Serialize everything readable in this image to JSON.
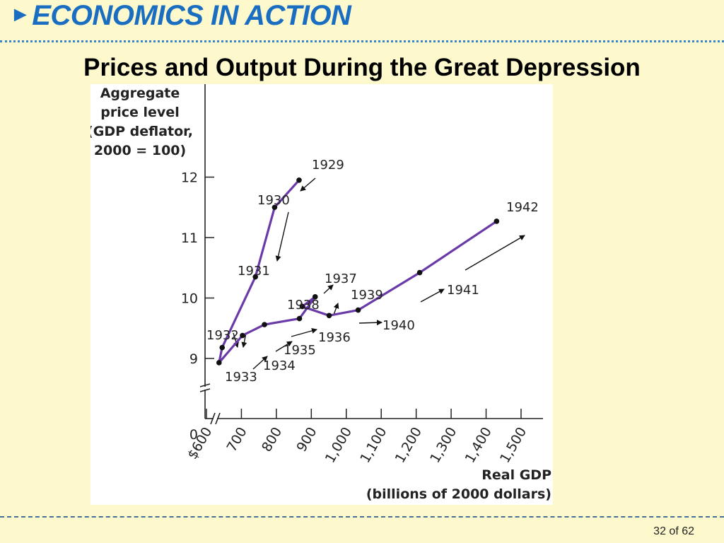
{
  "header": {
    "arrow": "►",
    "title": "ECONOMICS IN ACTION"
  },
  "slide_title": "Prices and Output During the Great Depression",
  "footer": {
    "page": "32 of 62"
  },
  "colors": {
    "background": "#fdf9cd",
    "header": "#1a6ec2",
    "line": "#6a3aa8",
    "point": "#111111"
  },
  "chart_data": {
    "type": "line",
    "ylabel_lines": [
      "Aggregate",
      "price level",
      "(GDP deflator,",
      "2000 = 100)"
    ],
    "xlabel_lines": [
      "Real GDP",
      "(billions of 2000 dollars)"
    ],
    "x_ticks": [
      {
        "value": 600,
        "label": "$600"
      },
      {
        "value": 700,
        "label": "700"
      },
      {
        "value": 800,
        "label": "800"
      },
      {
        "value": 900,
        "label": "900"
      },
      {
        "value": 1000,
        "label": "1,000"
      },
      {
        "value": 1100,
        "label": "1,100"
      },
      {
        "value": 1200,
        "label": "1,200"
      },
      {
        "value": 1300,
        "label": "1,300"
      },
      {
        "value": 1400,
        "label": "1,400"
      },
      {
        "value": 1500,
        "label": "1,500"
      }
    ],
    "y_ticks": [
      {
        "value": 9,
        "label": "9"
      },
      {
        "value": 10,
        "label": "10"
      },
      {
        "value": 11,
        "label": "11"
      },
      {
        "value": 12,
        "label": "12"
      }
    ],
    "y_origin_label": "0",
    "xlim": [
      600,
      1500
    ],
    "ylim": [
      8.5,
      12.5
    ],
    "axis_break": true,
    "grid": false,
    "series": [
      {
        "points": [
          {
            "year": "1929",
            "x": 865,
            "y": 11.95
          },
          {
            "year": "1930",
            "x": 795,
            "y": 11.5
          },
          {
            "year": "1931",
            "x": 740,
            "y": 10.35
          },
          {
            "year": "1932",
            "x": 645,
            "y": 9.18
          },
          {
            "year": "1933",
            "x": 636,
            "y": 8.93
          },
          {
            "year": "1934",
            "x": 703,
            "y": 9.38
          },
          {
            "year": "1935",
            "x": 766,
            "y": 9.56
          },
          {
            "year": "1936",
            "x": 866,
            "y": 9.66
          },
          {
            "year": "1937",
            "x": 911,
            "y": 10.02
          },
          {
            "year": "1938",
            "x": 874,
            "y": 9.86
          },
          {
            "year": "1939",
            "x": 951,
            "y": 9.71
          },
          {
            "year": "1940",
            "x": 1034,
            "y": 9.8
          },
          {
            "year": "1941",
            "x": 1210,
            "y": 10.42
          },
          {
            "year": "1942",
            "x": 1430,
            "y": 11.27
          }
        ]
      }
    ]
  }
}
